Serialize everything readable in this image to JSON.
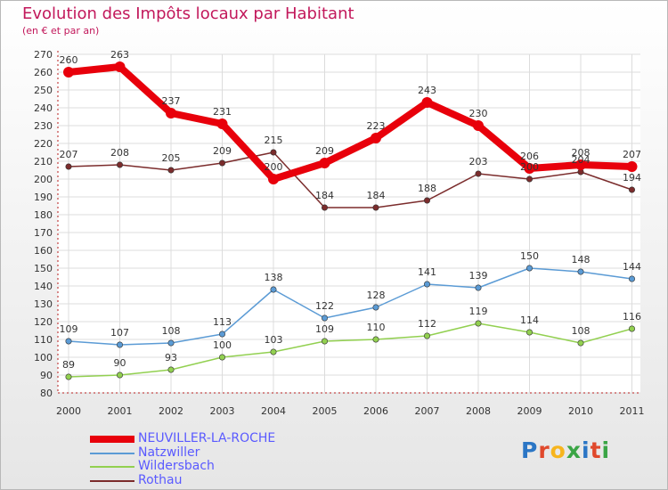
{
  "header": {
    "title": "Evolution des Impôts locaux par Habitant",
    "subtitle": "(en € et par an)"
  },
  "logo": {
    "text": "Proxiti",
    "letters": [
      "P",
      "r",
      "o",
      "x",
      "i",
      "t",
      "i"
    ]
  },
  "chart_data": {
    "type": "line",
    "title": "Evolution des Impôts locaux par Habitant",
    "subtitle": "(en € et par an)",
    "x": [
      "2000",
      "2001",
      "2002",
      "2003",
      "2004",
      "2005",
      "2006",
      "2007",
      "2008",
      "2009",
      "2010",
      "2011"
    ],
    "ylim": [
      80,
      270
    ],
    "yticks": [
      80,
      90,
      100,
      110,
      120,
      130,
      140,
      150,
      160,
      170,
      180,
      190,
      200,
      210,
      220,
      230,
      240,
      250,
      260,
      270
    ],
    "grid": true,
    "legend_position": "bottom-left",
    "series": [
      {
        "name": "NEUVILLER-LA-ROCHE",
        "color": "#e8000b",
        "values": [
          260,
          263,
          237,
          231,
          200,
          209,
          223,
          243,
          230,
          206,
          208,
          207
        ],
        "thick": true
      },
      {
        "name": "Natzwiller",
        "color": "#5b9bd5",
        "values": [
          109,
          107,
          108,
          113,
          138,
          122,
          128,
          141,
          139,
          150,
          148,
          144
        ],
        "thick": false
      },
      {
        "name": "Wildersbach",
        "color": "#92d050",
        "values": [
          89,
          90,
          93,
          100,
          103,
          109,
          110,
          112,
          119,
          114,
          108,
          116
        ],
        "thick": false
      },
      {
        "name": "Rothau",
        "color": "#7b2c2c",
        "values": [
          207,
          208,
          205,
          209,
          215,
          184,
          184,
          188,
          203,
          200,
          204,
          194
        ],
        "thick": false
      }
    ]
  }
}
